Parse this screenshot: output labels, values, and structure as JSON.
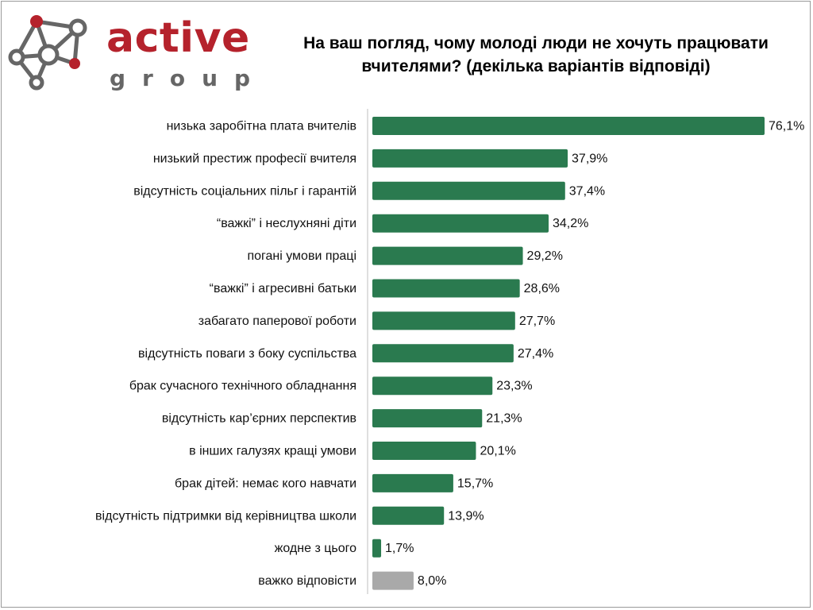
{
  "logo": {
    "word": "active",
    "sub": "group"
  },
  "colors": {
    "bar": "#2a7a4f",
    "bar_muted": "#a9a9a9",
    "brand_red": "#b5222c",
    "brand_grey": "#666666"
  },
  "chart_data": {
    "type": "bar",
    "orientation": "horizontal",
    "title": "На ваш погляд, чому молоді люди не хочуть працювати вчителями? (декілька варіантів відповіді)",
    "categories": [
      "низька заробітна плата вчителів",
      "низький престиж професії вчителя",
      "відсутність соціальних пільг і гарантій",
      "“важкі” і неслухняні діти",
      "погані умови праці",
      "“важкі” і агресивні батьки",
      "забагато паперової роботи",
      "відсутність поваги з боку суспільства",
      "брак сучасного технічного обладнання",
      "відсутність кар’єрних перспектив",
      "в інших галузях кращі умови",
      "брак дітей: немає кого навчати",
      "відсутність підтримки від керівництва школи",
      "жодне з цього",
      "важко відповісти"
    ],
    "values": [
      76.1,
      37.9,
      37.4,
      34.2,
      29.2,
      28.6,
      27.7,
      27.4,
      23.3,
      21.3,
      20.1,
      15.7,
      13.9,
      1.7,
      8.0
    ],
    "value_labels": [
      "76,1%",
      "37,9%",
      "37,4%",
      "34,2%",
      "29,2%",
      "28,6%",
      "27,7%",
      "27,4%",
      "23,3%",
      "21,3%",
      "20,1%",
      "15,7%",
      "13,9%",
      "1,7%",
      "8,0%"
    ],
    "muted_categories": [
      "важко відповісти"
    ],
    "xlabel": "",
    "ylabel": "",
    "xlim": [
      0,
      76.1
    ],
    "grid": false,
    "legend": "none"
  }
}
